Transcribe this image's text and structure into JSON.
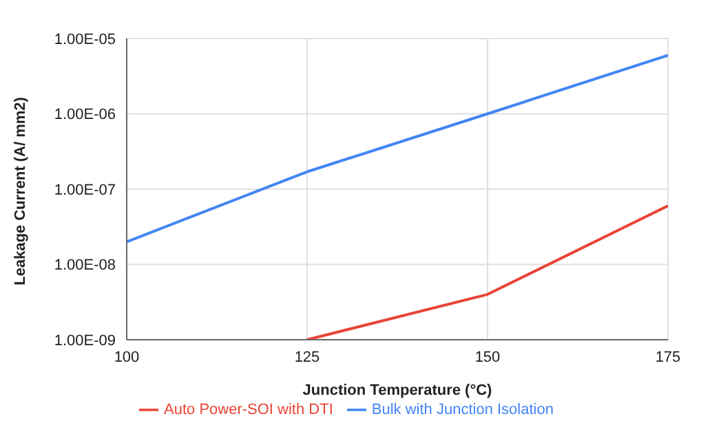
{
  "chart_data": {
    "type": "line",
    "xlabel": "Junction Temperature (°C)",
    "ylabel": "Leakage Current (A/ mm2)",
    "x": [
      100,
      125,
      150,
      175
    ],
    "series": [
      {
        "name": "Bulk with Junction Isolation",
        "color": "#4285f4",
        "values": [
          2e-08,
          1.7e-07,
          1e-06,
          6e-06
        ]
      },
      {
        "name": "Auto Power-SOI with DTI",
        "color": "#ea4335",
        "values": [
          null,
          1e-09,
          4e-09,
          6e-08
        ]
      }
    ],
    "xlim": [
      100,
      175
    ],
    "xticks": [
      100,
      125,
      150,
      175
    ],
    "ylim": [
      1e-09,
      1e-05
    ],
    "yticks": [
      {
        "value": 1e-09,
        "label": "1.00E-09"
      },
      {
        "value": 1e-08,
        "label": "1.00E-08"
      },
      {
        "value": 1e-07,
        "label": "1.00E-07"
      },
      {
        "value": 1e-06,
        "label": "1.00E-06"
      },
      {
        "value": 1e-05,
        "label": "1.00E-05"
      }
    ],
    "log": "y",
    "grid": true,
    "legend": "bottom",
    "marker": "none",
    "line_style": "solid"
  }
}
